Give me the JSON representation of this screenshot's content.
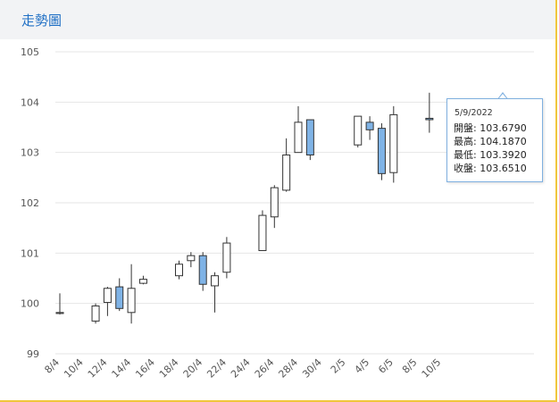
{
  "header": {
    "title": "走勢圖"
  },
  "colors": {
    "up_fill": "#ffffff",
    "down_fill": "#7fb3e6",
    "candle_stroke": "#333333",
    "grid": "#e6e6e6",
    "header_text": "#1f6fc5",
    "border_accent": "#f0c63c"
  },
  "tooltip": {
    "date": "5/9/2022",
    "open": "開盤: 103.6790",
    "high": "最高: 104.1870",
    "low": "最低: 103.3920",
    "close": "收盤: 103.6510"
  },
  "chart_data": {
    "type": "candlestick",
    "title": "",
    "xlabel": "",
    "ylabel": "",
    "ylim": [
      99,
      105
    ],
    "grid": true,
    "y_ticks": [
      "99",
      "100",
      "101",
      "102",
      "103",
      "104",
      "105"
    ],
    "x_ticks": [
      "8/4",
      "10/4",
      "12/4",
      "14/4",
      "16/4",
      "18/4",
      "20/4",
      "22/4",
      "24/4",
      "26/4",
      "28/4",
      "30/4",
      "2/5",
      "4/5",
      "6/5",
      "8/5",
      "10/5"
    ],
    "candles": [
      {
        "date": "8/4",
        "open": 99.8,
        "high": 100.2,
        "low": 99.78,
        "close": 99.82
      },
      {
        "date": "11/4",
        "open": 99.65,
        "high": 100.0,
        "low": 99.6,
        "close": 99.95
      },
      {
        "date": "12/4",
        "open": 100.02,
        "high": 100.33,
        "low": 99.75,
        "close": 100.3
      },
      {
        "date": "13/4",
        "open": 100.33,
        "high": 100.5,
        "low": 99.85,
        "close": 99.9
      },
      {
        "date": "14/4",
        "open": 99.82,
        "high": 100.78,
        "low": 99.6,
        "close": 100.3
      },
      {
        "date": "15/4",
        "open": 100.4,
        "high": 100.55,
        "low": 100.38,
        "close": 100.48
      },
      {
        "date": "18/4",
        "open": 100.55,
        "high": 100.85,
        "low": 100.48,
        "close": 100.78
      },
      {
        "date": "19/4",
        "open": 100.85,
        "high": 101.02,
        "low": 100.72,
        "close": 100.95
      },
      {
        "date": "20/4",
        "open": 100.95,
        "high": 101.02,
        "low": 100.25,
        "close": 100.38
      },
      {
        "date": "21/4",
        "open": 100.35,
        "high": 100.62,
        "low": 99.82,
        "close": 100.55
      },
      {
        "date": "22/4",
        "open": 100.62,
        "high": 101.32,
        "low": 100.5,
        "close": 101.2
      },
      {
        "date": "25/4",
        "open": 101.05,
        "high": 101.85,
        "low": 101.05,
        "close": 101.75
      },
      {
        "date": "26/4",
        "open": 101.72,
        "high": 102.35,
        "low": 101.5,
        "close": 102.3
      },
      {
        "date": "27/4",
        "open": 102.25,
        "high": 103.28,
        "low": 102.22,
        "close": 102.95
      },
      {
        "date": "28/4",
        "open": 103.0,
        "high": 103.92,
        "low": 103.0,
        "close": 103.6
      },
      {
        "date": "29/4",
        "open": 103.65,
        "high": 103.65,
        "low": 102.85,
        "close": 102.95
      },
      {
        "date": "3/5",
        "open": 103.15,
        "high": 103.72,
        "low": 103.1,
        "close": 103.72
      },
      {
        "date": "4/5",
        "open": 103.6,
        "high": 103.72,
        "low": 103.25,
        "close": 103.45
      },
      {
        "date": "5/5",
        "open": 103.48,
        "high": 103.58,
        "low": 102.45,
        "close": 102.58
      },
      {
        "date": "6/5",
        "open": 102.6,
        "high": 103.92,
        "low": 102.4,
        "close": 103.75
      },
      {
        "date": "9/5",
        "open": 103.679,
        "high": 104.187,
        "low": 103.392,
        "close": 103.651
      }
    ]
  }
}
